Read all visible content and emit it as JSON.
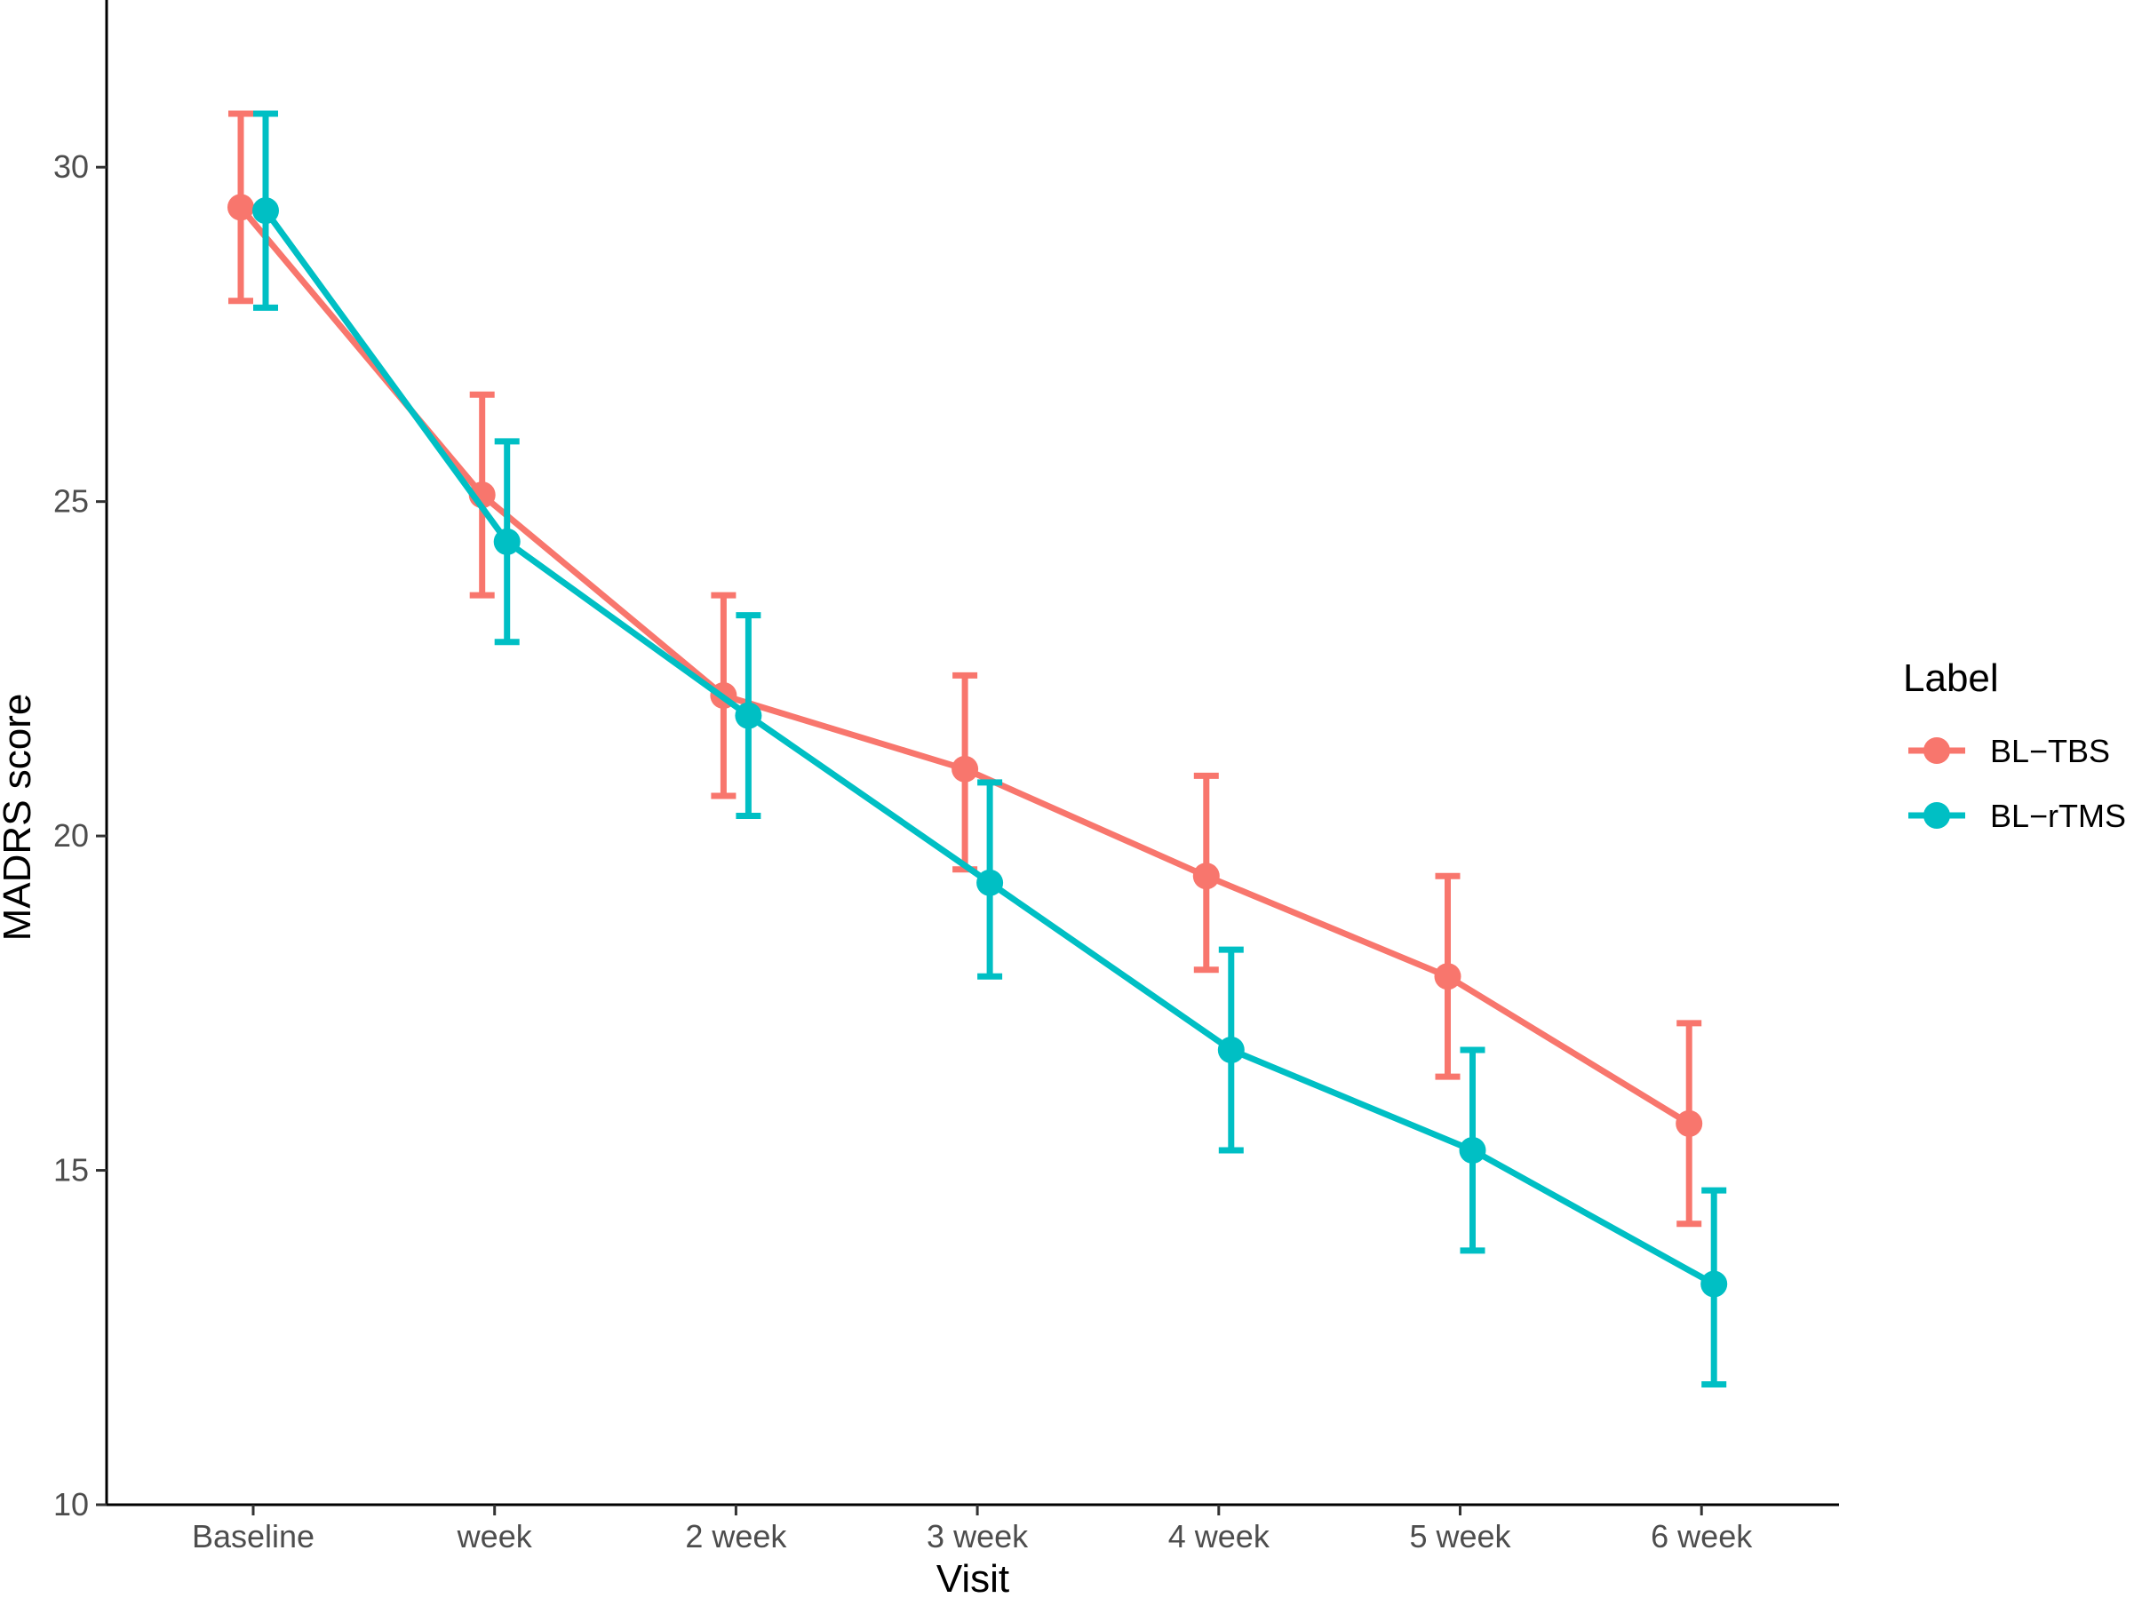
{
  "chart_data": {
    "type": "line",
    "xlabel": "Visit",
    "ylabel": "MADRS score",
    "categories": [
      "Baseline",
      "week",
      "2 week",
      "3 week",
      "4 week",
      "5 week",
      "6 week"
    ],
    "ylim": [
      10,
      32.5
    ],
    "yticks": [
      10,
      15,
      20,
      25,
      30
    ],
    "grid": false,
    "legend": {
      "title": "Label",
      "position": "right"
    },
    "series": [
      {
        "name": "BL−TBS",
        "color": "#F8766D",
        "values": [
          29.4,
          25.1,
          22.1,
          21.0,
          19.4,
          17.9,
          15.7
        ],
        "error_low": [
          28.0,
          23.6,
          20.6,
          19.5,
          18.0,
          16.4,
          14.2
        ],
        "error_high": [
          30.8,
          26.6,
          23.6,
          22.4,
          20.9,
          19.4,
          17.2
        ]
      },
      {
        "name": "BL−rTMS",
        "color": "#00BFC4",
        "values": [
          29.35,
          24.4,
          21.8,
          19.3,
          16.8,
          15.3,
          13.3
        ],
        "error_low": [
          27.9,
          22.9,
          20.3,
          17.9,
          15.3,
          13.8,
          11.8
        ],
        "error_high": [
          30.8,
          25.9,
          23.3,
          20.8,
          18.3,
          16.8,
          14.7
        ]
      }
    ]
  }
}
